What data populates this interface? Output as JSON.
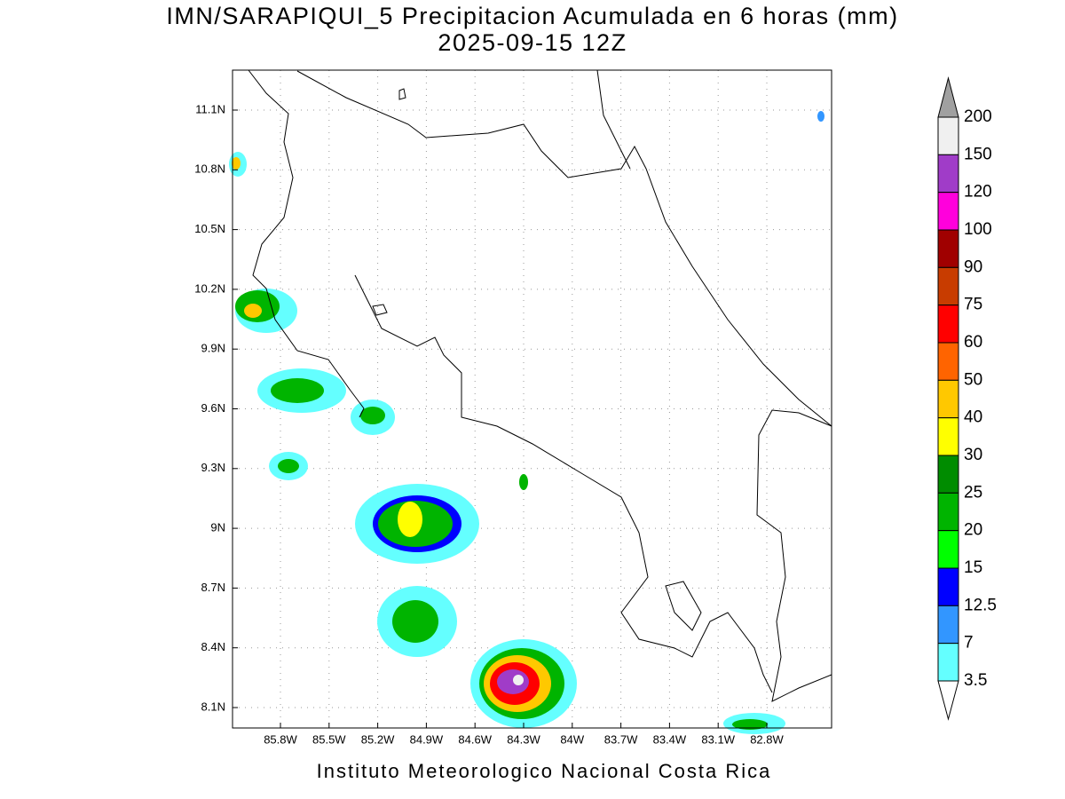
{
  "title": "IMN/SARAPIQUI_5 Precipitacion Acumulada en 6 horas (mm)",
  "subtitle": "2025-09-15 12Z",
  "lon_ticks": [
    "85.8W",
    "85.5W",
    "85.2W",
    "84.9W",
    "84.6W",
    "84.3W",
    "84W",
    "83.7W",
    "83.4W",
    "83.1W",
    "82.8W"
  ],
  "lat_ticks": [
    "11.1N",
    "10.8N",
    "10.5N",
    "10.2N",
    "9.9N",
    "9.6N",
    "9.3N",
    "9N",
    "8.7N",
    "8.4N",
    "8.1N"
  ],
  "colorbar": {
    "labels": [
      "200",
      "150",
      "120",
      "100",
      "90",
      "75",
      "60",
      "50",
      "40",
      "30",
      "25",
      "20",
      "15",
      "12.5",
      "7",
      "3.5"
    ],
    "colors": [
      "#f0f0f0",
      "#a03cc8",
      "#ff00dc",
      "#a00000",
      "#c83c00",
      "#ff0000",
      "#ff6400",
      "#ffc800",
      "#ffff00",
      "#008c00",
      "#00b400",
      "#00ff00",
      "#0000ff",
      "#3296ff",
      "#64ffff"
    ],
    "over_color": "#a0a0a0",
    "under_color": "#ffffff"
  },
  "credit": "Instituto Meteorologico Nacional Costa Rica"
}
